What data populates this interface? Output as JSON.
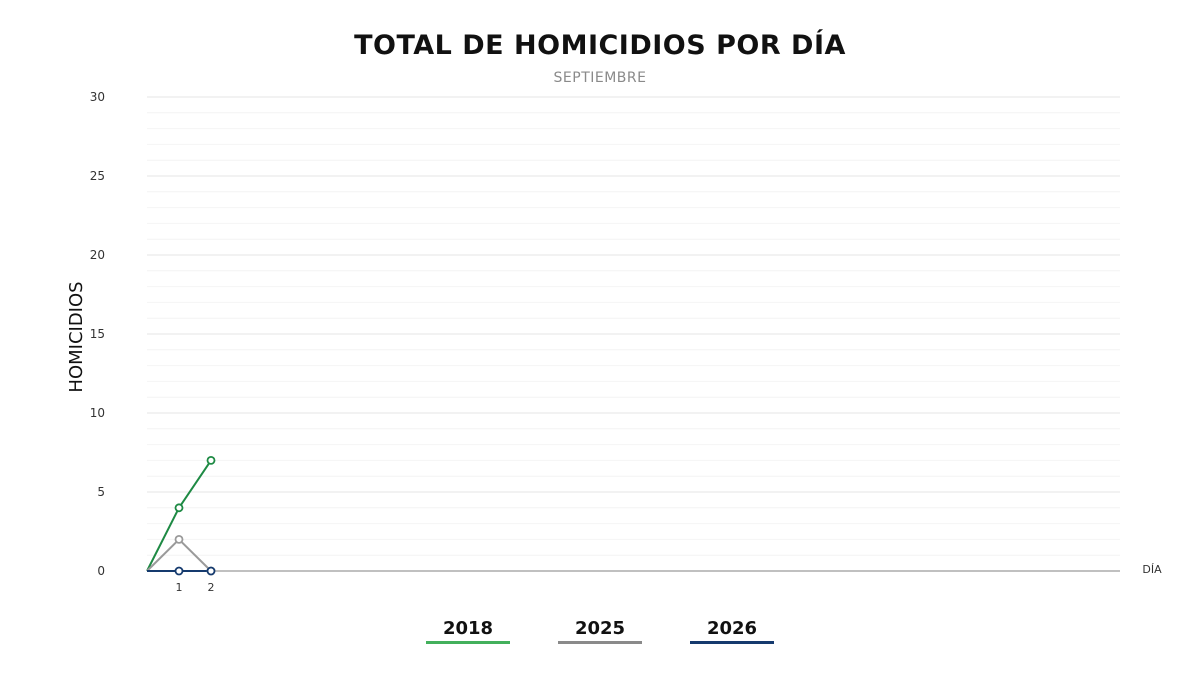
{
  "chart_data": {
    "type": "line",
    "title": "TOTAL DE HOMICIDIOS POR DÍA",
    "subtitle": "SEPTIEMBRE",
    "ylabel": "HOMICIDIOS",
    "xlabel": "DÍA",
    "ylim": [
      0,
      30
    ],
    "yticks": [
      "0",
      "5",
      "10",
      "15",
      "20",
      "25",
      "30"
    ],
    "x": [
      0,
      1,
      2
    ],
    "xtick_labels": [
      "1",
      "2"
    ],
    "grid": true,
    "legend_position": "bottom",
    "series": [
      {
        "name": "2018",
        "color": "#1e8a44",
        "legend_color": "#43b05c",
        "values": [
          0,
          4,
          7
        ]
      },
      {
        "name": "2025",
        "color": "#9a9a9a",
        "legend_color": "#8a8a8a",
        "values": [
          0,
          2,
          0
        ]
      },
      {
        "name": "2026",
        "color": "#153a6e",
        "legend_color": "#153a6e",
        "values": [
          0,
          0,
          0
        ]
      }
    ]
  }
}
